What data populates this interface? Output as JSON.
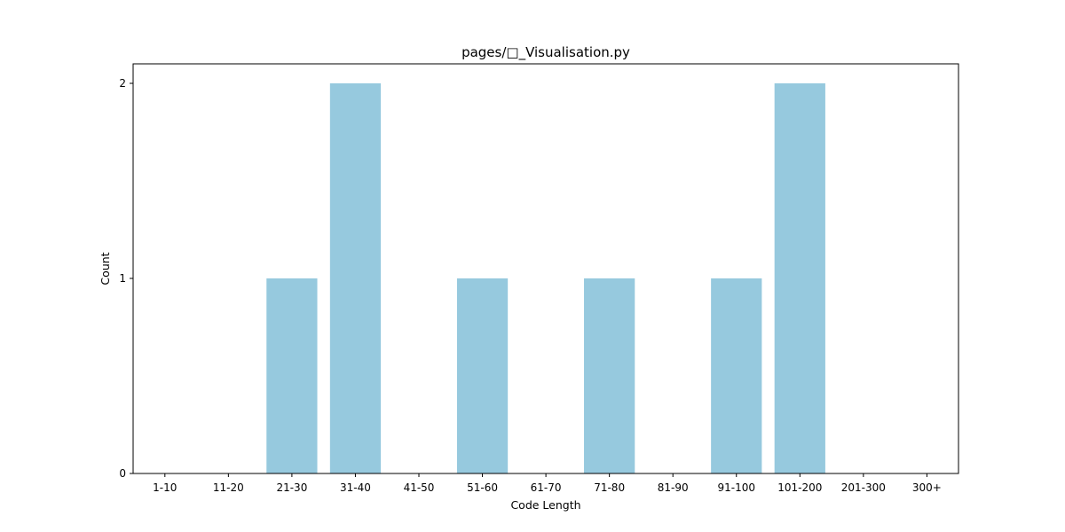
{
  "chart_data": {
    "type": "bar",
    "title": "pages/□_Visualisation.py",
    "xlabel": "Code Length",
    "ylabel": "Count",
    "categories": [
      "1-10",
      "11-20",
      "21-30",
      "31-40",
      "41-50",
      "51-60",
      "61-70",
      "71-80",
      "81-90",
      "91-100",
      "101-200",
      "201-300",
      "300+"
    ],
    "values": [
      0,
      0,
      1,
      2,
      0,
      1,
      0,
      1,
      0,
      1,
      2,
      0,
      0
    ],
    "ylim": [
      0,
      2.1
    ],
    "yticks": [
      "0",
      "1",
      "2"
    ],
    "bar_color": "#96c9de",
    "grid": false,
    "legend": "none"
  }
}
